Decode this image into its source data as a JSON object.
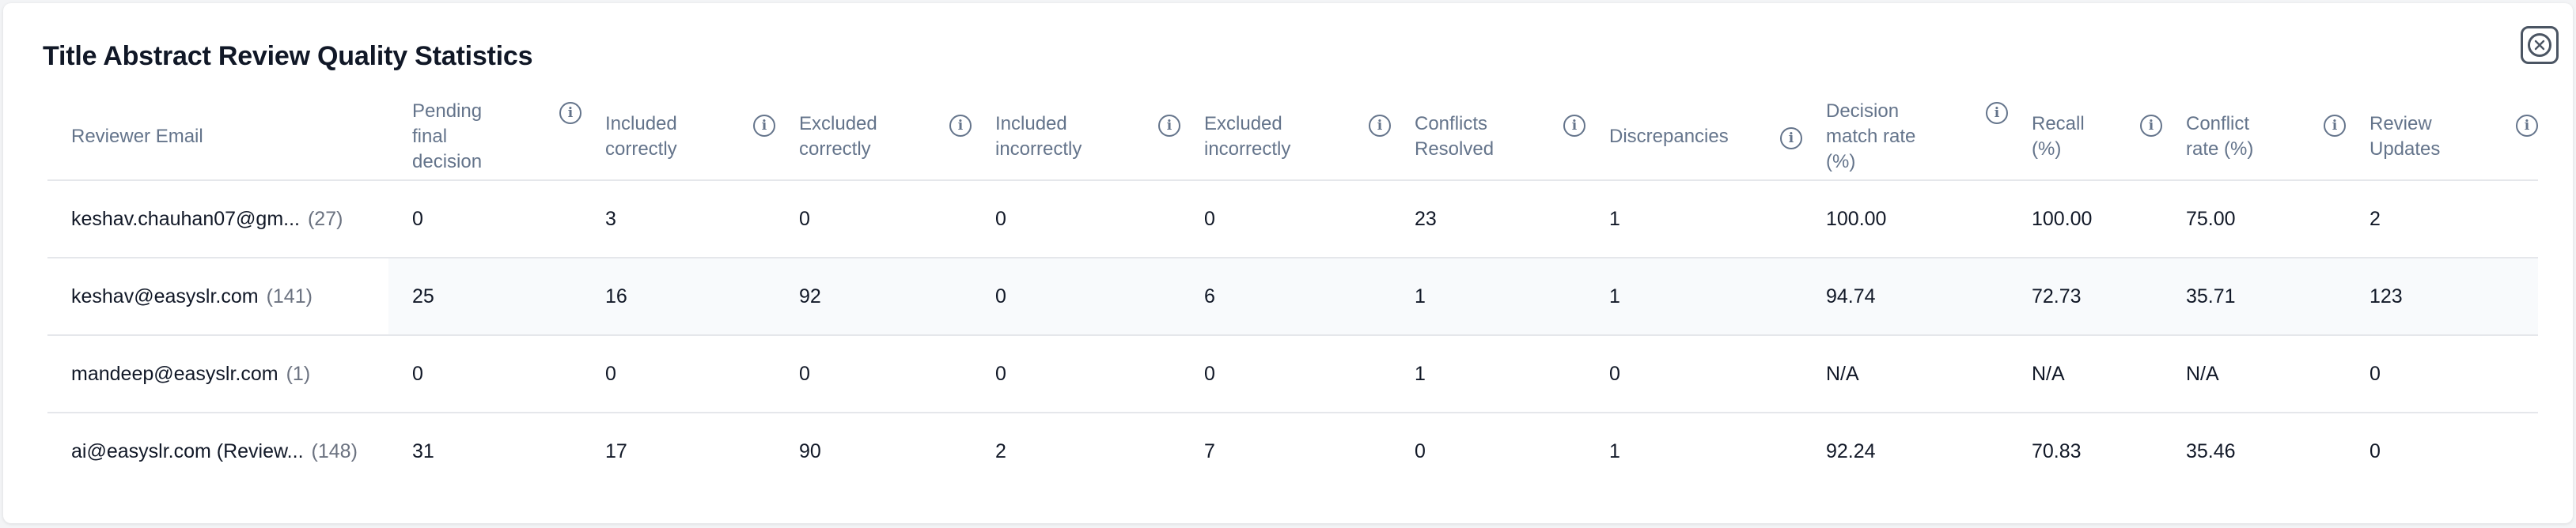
{
  "dialog": {
    "title": "Title Abstract Review Quality Statistics",
    "close_icon": "close-x-icon"
  },
  "table": {
    "headers": [
      {
        "label": "Reviewer Email",
        "has_info": false
      },
      {
        "label": "Pending final decision",
        "has_info": true
      },
      {
        "label": "Included correctly",
        "has_info": true
      },
      {
        "label": "Excluded correctly",
        "has_info": true
      },
      {
        "label": "Included incorrectly",
        "has_info": true
      },
      {
        "label": "Excluded incorrectly",
        "has_info": true
      },
      {
        "label": "Conflicts Resolved",
        "has_info": true
      },
      {
        "label": "Discrepancies",
        "has_info": true
      },
      {
        "label": "Decision match rate (%)",
        "has_info": true
      },
      {
        "label": "Recall (%)",
        "has_info": true
      },
      {
        "label": "Conflict rate (%)",
        "has_info": true
      },
      {
        "label": "Review Updates",
        "has_info": true
      }
    ],
    "rows": [
      {
        "email": "keshav.chauhan07@gm...",
        "count": "(27)",
        "cells": [
          "0",
          "3",
          "0",
          "0",
          "0",
          "23",
          "1",
          "100.00",
          "100.00",
          "75.00",
          "2"
        ]
      },
      {
        "email": "keshav@easyslr.com",
        "count": "(141)",
        "cells": [
          "25",
          "16",
          "92",
          "0",
          "6",
          "1",
          "1",
          "94.74",
          "72.73",
          "35.71",
          "123"
        ]
      },
      {
        "email": "mandeep@easyslr.com",
        "count": "(1)",
        "cells": [
          "0",
          "0",
          "0",
          "0",
          "0",
          "1",
          "0",
          "N/A",
          "N/A",
          "N/A",
          "0"
        ]
      },
      {
        "email": "ai@easyslr.com (Review...",
        "count": "(148)",
        "cells": [
          "31",
          "17",
          "90",
          "2",
          "7",
          "0",
          "1",
          "92.24",
          "70.83",
          "35.46",
          "0"
        ]
      }
    ]
  },
  "icons": {
    "info": "info-icon",
    "info_glyph": "i"
  },
  "colors": {
    "header_text": "#64748b",
    "row_alt": "#f8fafc",
    "border": "#e5e7eb"
  }
}
